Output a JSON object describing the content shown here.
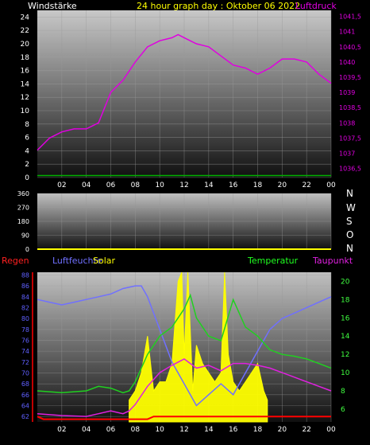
{
  "header": {
    "left": "Windstärke",
    "center": "24 hour graph day : Oktober 06 2022",
    "right": "Luftdruck"
  },
  "compass": [
    "N",
    "W",
    "S",
    "O",
    "N"
  ],
  "legend3": {
    "regen": "Regen",
    "luftfeuchte": "Luftfeuchte",
    "solar": "Solar",
    "temperatur": "Temperatur",
    "taupunkt": "Taupunkt"
  },
  "colors": {
    "pressure": "#e000e0",
    "wind": "#00b000",
    "humidity": "#7070ff",
    "solar": "#ffff00",
    "temperature": "#20d020",
    "dewpoint": "#e020e0",
    "rain": "#ff0000",
    "ticks_left1": "#ffffff",
    "ticks_right1": "#e000e0",
    "ticks_left3": "#6060ff",
    "ticks_right3": "#40ff40"
  },
  "x_ticks": [
    "02",
    "04",
    "06",
    "08",
    "10",
    "12",
    "14",
    "16",
    "18",
    "20",
    "22",
    "00"
  ],
  "chart_data": [
    {
      "type": "line",
      "title": "24 hour graph day : Oktober 06 2022",
      "y_left_label": "Windstärke",
      "y_right_label": "Luftdruck",
      "y_left_ticks": [
        "0",
        "2",
        "4",
        "6",
        "8",
        "10",
        "12",
        "14",
        "16",
        "18",
        "20",
        "22",
        "24"
      ],
      "y_left_range": [
        0,
        25
      ],
      "y_right_ticks": [
        "1036,5",
        "1037",
        "1037,5",
        "1038",
        "1038,5",
        "1039",
        "1039,5",
        "1040",
        "1040,5",
        "1041",
        "1041,5"
      ],
      "y_right_range": [
        1036.2,
        1041.7
      ],
      "series": [
        {
          "name": "Luftdruck",
          "axis": "right",
          "x": [
            0,
            1,
            2,
            3,
            4,
            5,
            5.5,
            6,
            7,
            8,
            9,
            10,
            11,
            11.5,
            12,
            13,
            14,
            15,
            16,
            17,
            18,
            19,
            20,
            21,
            22,
            23,
            24
          ],
          "values": [
            1037.1,
            1037.5,
            1037.7,
            1037.8,
            1037.8,
            1038.0,
            1038.5,
            1039.0,
            1039.4,
            1040.0,
            1040.5,
            1040.7,
            1040.8,
            1040.9,
            1040.8,
            1040.6,
            1040.5,
            1040.2,
            1039.9,
            1039.8,
            1039.6,
            1039.8,
            1040.1,
            1040.1,
            1040.0,
            1039.6,
            1039.3
          ]
        },
        {
          "name": "Windstärke",
          "axis": "left",
          "x": [
            0,
            24
          ],
          "values": [
            0.3,
            0.3
          ]
        }
      ]
    },
    {
      "type": "line",
      "y_left_ticks": [
        "0",
        "90",
        "180",
        "270",
        "360"
      ],
      "y_left_range": [
        0,
        360
      ],
      "series": [
        {
          "name": "Windrichtung",
          "x": [
            0,
            24
          ],
          "values": [
            0,
            0
          ]
        }
      ]
    },
    {
      "type": "line",
      "y_left_ticks": [
        "62",
        "64",
        "66",
        "68",
        "70",
        "72",
        "74",
        "76",
        "78",
        "80",
        "82",
        "84",
        "86",
        "88"
      ],
      "y_left_range": [
        61,
        88.5
      ],
      "y_right_ticks": [
        "6",
        "8",
        "10",
        "12",
        "14",
        "16",
        "18",
        "20"
      ],
      "y_right_range": [
        4.6,
        21
      ],
      "series": [
        {
          "name": "Luftfeuchte",
          "axis": "left",
          "x": [
            0,
            1,
            2,
            3,
            4,
            5,
            6,
            7,
            8,
            8.5,
            9,
            10,
            11,
            12,
            13,
            14,
            15,
            16,
            17,
            18,
            19,
            20,
            21,
            22,
            23,
            24
          ],
          "values": [
            83.5,
            83,
            82.5,
            83,
            83.5,
            84,
            84.5,
            85.5,
            86,
            86,
            84,
            78,
            72,
            68,
            64,
            66,
            68,
            66,
            70,
            74,
            78,
            80,
            81,
            82,
            83,
            84
          ]
        },
        {
          "name": "Temperatur",
          "axis": "right",
          "x": [
            0,
            2,
            4,
            5,
            6,
            7,
            7.5,
            8,
            9,
            10,
            11,
            12,
            12.5,
            13,
            14,
            15,
            16,
            17,
            18,
            19,
            20,
            21,
            22,
            23,
            24
          ],
          "values": [
            8,
            7.8,
            8,
            8.5,
            8.3,
            7.8,
            8,
            9,
            12,
            14,
            15,
            17,
            18.5,
            16,
            14,
            13.5,
            18,
            15,
            14,
            12.5,
            12,
            11.8,
            11.5,
            11,
            10.5
          ]
        },
        {
          "name": "Taupunkt",
          "axis": "right",
          "x": [
            0,
            2,
            4,
            5,
            6,
            7,
            7.5,
            8,
            9,
            10,
            11,
            12,
            13,
            14,
            15,
            16,
            17,
            18,
            19,
            20,
            21,
            22,
            23,
            24
          ],
          "values": [
            5.5,
            5.3,
            5.2,
            5.5,
            5.8,
            5.5,
            5.8,
            6.5,
            8.5,
            10,
            10.8,
            11.5,
            10.5,
            10.8,
            10.2,
            11,
            11,
            10.8,
            10.5,
            10,
            9.5,
            9,
            8.5,
            8
          ]
        },
        {
          "name": "Solar",
          "axis": "right",
          "x": [
            7.5,
            8,
            8.5,
            9,
            9.5,
            10,
            10.5,
            11,
            11.5,
            11.8,
            12,
            12.3,
            12.7,
            13,
            13.5,
            14,
            14.5,
            15,
            15.3,
            15.6,
            16,
            16.5,
            17,
            17.5,
            18,
            18.5,
            18.8
          ],
          "values": [
            7,
            8,
            10,
            14,
            8,
            9,
            9,
            11,
            20,
            21,
            12,
            21,
            8,
            13,
            11,
            10,
            9,
            10,
            21,
            12,
            9,
            8,
            9,
            10,
            11,
            8,
            7
          ]
        },
        {
          "name": "Regen",
          "axis": "left",
          "x": [
            0,
            0.5,
            7,
            9,
            9.5,
            24
          ],
          "values": [
            62,
            61.5,
            61.5,
            61.5,
            62,
            62
          ]
        }
      ]
    }
  ]
}
